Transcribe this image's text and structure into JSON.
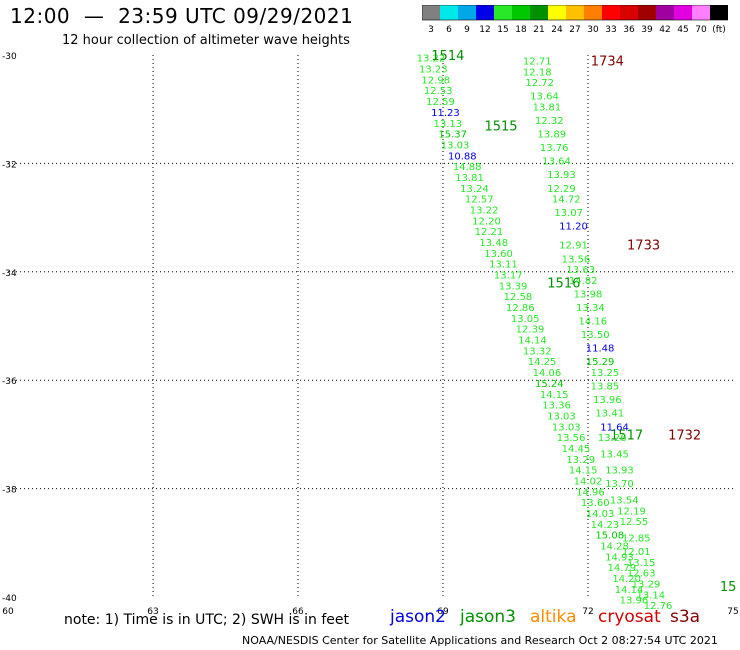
{
  "header": {
    "title": "12:00  —  23:59 UTC 09/29/2021",
    "subtitle": "12 hour collection of altimeter wave heights"
  },
  "color_scale": {
    "labels": [
      "3",
      "6",
      "9",
      "12",
      "15",
      "18",
      "21",
      "24",
      "27",
      "30",
      "33",
      "36",
      "39",
      "42",
      "45",
      "70",
      "(ft)"
    ],
    "colors": [
      "#808080",
      "#00e8e8",
      "#00a8e8",
      "#0000e8",
      "#28e828",
      "#00c800",
      "#009000",
      "#ffff00",
      "#ffc000",
      "#ff8000",
      "#ff0000",
      "#d80000",
      "#a00000",
      "#a000a0",
      "#e000e0",
      "#ff80ff",
      "#000000"
    ]
  },
  "footer": {
    "note": "note:  1) Time is in UTC;  2) SWH is in feet",
    "satellites": [
      {
        "name": "jason2",
        "color": "#0000e0"
      },
      {
        "name": "jason3",
        "color": "#009000"
      },
      {
        "name": "altika",
        "color": "#ff8c00"
      },
      {
        "name": "cryosat",
        "color": "#d00000"
      },
      {
        "name": "s3a",
        "color": "#800000"
      }
    ],
    "credit": "NOAA/NESDIS Center for Satellite Applications and Research    Oct  2 08:27:54 UTC 2021"
  },
  "chart_data": {
    "type": "scatter",
    "xlim": [
      60,
      75
    ],
    "ylim": [
      -40,
      -30
    ],
    "x_ticks": [
      "60",
      "63",
      "66",
      "69",
      "72",
      "75"
    ],
    "y_ticks": [
      "-30",
      "-32",
      "-34",
      "-36",
      "-38",
      "-40"
    ],
    "grid": true,
    "series": [
      {
        "name": "jason3",
        "color": "#009000",
        "points": [
          {
            "x": 68.75,
            "y": -30.05,
            "v": "13.22",
            "c": "#28e828"
          },
          {
            "x": 68.8,
            "y": -30.25,
            "v": "13.23",
            "c": "#28e828"
          },
          {
            "x": 68.85,
            "y": -30.45,
            "v": "12.98",
            "c": "#28e828"
          },
          {
            "x": 68.9,
            "y": -30.65,
            "v": "12.53",
            "c": "#28e828"
          },
          {
            "x": 68.95,
            "y": -30.85,
            "v": "12.59",
            "c": "#28e828"
          },
          {
            "x": 69.05,
            "y": -31.05,
            "v": "11.23",
            "c": "#0000e8"
          },
          {
            "x": 69.1,
            "y": -31.25,
            "v": "13.13",
            "c": "#28e828"
          },
          {
            "x": 69.2,
            "y": -31.45,
            "v": "15.37",
            "c": "#00c800"
          },
          {
            "x": 69.25,
            "y": -31.65,
            "v": "13.03",
            "c": "#28e828"
          },
          {
            "x": 69.4,
            "y": -31.85,
            "v": "10.88",
            "c": "#0000e8"
          },
          {
            "x": 69.5,
            "y": -32.05,
            "v": "14.88",
            "c": "#28e828"
          },
          {
            "x": 69.55,
            "y": -32.25,
            "v": "13.81",
            "c": "#28e828"
          },
          {
            "x": 69.65,
            "y": -32.45,
            "v": "13.24",
            "c": "#28e828"
          },
          {
            "x": 69.75,
            "y": -32.65,
            "v": "12.57",
            "c": "#28e828"
          },
          {
            "x": 69.85,
            "y": -32.85,
            "v": "13.22",
            "c": "#28e828"
          },
          {
            "x": 69.9,
            "y": -33.05,
            "v": "12.20",
            "c": "#28e828"
          },
          {
            "x": 69.95,
            "y": -33.25,
            "v": "12.21",
            "c": "#28e828"
          },
          {
            "x": 70.05,
            "y": -33.45,
            "v": "13.48",
            "c": "#28e828"
          },
          {
            "x": 70.15,
            "y": -33.65,
            "v": "13.60",
            "c": "#28e828"
          },
          {
            "x": 70.25,
            "y": -33.85,
            "v": "13.11",
            "c": "#28e828"
          },
          {
            "x": 70.35,
            "y": -34.05,
            "v": "13.17",
            "c": "#28e828"
          },
          {
            "x": 70.45,
            "y": -34.25,
            "v": "13.39",
            "c": "#28e828"
          },
          {
            "x": 70.55,
            "y": -34.45,
            "v": "12.58",
            "c": "#28e828"
          },
          {
            "x": 70.6,
            "y": -34.65,
            "v": "12.86",
            "c": "#28e828"
          },
          {
            "x": 70.7,
            "y": -34.85,
            "v": "13.05",
            "c": "#28e828"
          },
          {
            "x": 70.8,
            "y": -35.05,
            "v": "12.39",
            "c": "#28e828"
          },
          {
            "x": 70.85,
            "y": -35.25,
            "v": "14.14",
            "c": "#28e828"
          },
          {
            "x": 70.95,
            "y": -35.45,
            "v": "13.32",
            "c": "#28e828"
          },
          {
            "x": 71.05,
            "y": -35.65,
            "v": "14.25",
            "c": "#28e828"
          },
          {
            "x": 71.15,
            "y": -35.85,
            "v": "14.06",
            "c": "#28e828"
          },
          {
            "x": 71.2,
            "y": -36.05,
            "v": "15.24",
            "c": "#00c800"
          },
          {
            "x": 71.3,
            "y": -36.25,
            "v": "14.15",
            "c": "#28e828"
          },
          {
            "x": 71.35,
            "y": -36.45,
            "v": "13.36",
            "c": "#28e828"
          },
          {
            "x": 71.45,
            "y": -36.65,
            "v": "13.03",
            "c": "#28e828"
          },
          {
            "x": 71.55,
            "y": -36.85,
            "v": "13.03",
            "c": "#28e828"
          },
          {
            "x": 71.65,
            "y": -37.05,
            "v": "13.56",
            "c": "#28e828"
          },
          {
            "x": 71.75,
            "y": -37.25,
            "v": "14.45",
            "c": "#28e828"
          },
          {
            "x": 71.85,
            "y": -37.45,
            "v": "13.29",
            "c": "#28e828"
          },
          {
            "x": 71.9,
            "y": -37.65,
            "v": "14.15",
            "c": "#28e828"
          },
          {
            "x": 72.0,
            "y": -37.85,
            "v": "14.02",
            "c": "#28e828"
          },
          {
            "x": 72.05,
            "y": -38.05,
            "v": "14.96",
            "c": "#28e828"
          },
          {
            "x": 72.15,
            "y": -38.25,
            "v": "13.60",
            "c": "#28e828"
          },
          {
            "x": 72.25,
            "y": -38.45,
            "v": "14.03",
            "c": "#28e828"
          },
          {
            "x": 72.35,
            "y": -38.65,
            "v": "14.23",
            "c": "#28e828"
          },
          {
            "x": 72.45,
            "y": -38.85,
            "v": "15.08",
            "c": "#00c800"
          },
          {
            "x": 72.55,
            "y": -39.05,
            "v": "14.28",
            "c": "#28e828"
          },
          {
            "x": 72.65,
            "y": -39.25,
            "v": "14.93",
            "c": "#28e828"
          },
          {
            "x": 72.7,
            "y": -39.45,
            "v": "14.79",
            "c": "#28e828"
          },
          {
            "x": 72.8,
            "y": -39.65,
            "v": "14.20",
            "c": "#28e828"
          },
          {
            "x": 72.85,
            "y": -39.85,
            "v": "14.14",
            "c": "#28e828"
          },
          {
            "x": 72.95,
            "y": -40.05,
            "v": "13.96",
            "c": "#28e828"
          }
        ],
        "time_labels": [
          {
            "x": 69.1,
            "y": -30.0,
            "t": "1514"
          },
          {
            "x": 70.2,
            "y": -31.3,
            "t": "1515"
          },
          {
            "x": 71.5,
            "y": -34.2,
            "t": "1516"
          },
          {
            "x": 72.8,
            "y": -37.0,
            "t": "1517"
          },
          {
            "x": 74.9,
            "y": -39.8,
            "t": "15"
          }
        ]
      },
      {
        "name": "cryosat",
        "color": "#800000",
        "points": [
          {
            "x": 70.95,
            "y": -30.1,
            "v": "12.71",
            "c": "#28e828"
          },
          {
            "x": 70.95,
            "y": -30.3,
            "v": "12.18",
            "c": "#28e828"
          },
          {
            "x": 71.0,
            "y": -30.5,
            "v": "12.72",
            "c": "#28e828"
          },
          {
            "x": 71.1,
            "y": -30.75,
            "v": "13.64",
            "c": "#28e828"
          },
          {
            "x": 71.15,
            "y": -30.95,
            "v": "13.81",
            "c": "#28e828"
          },
          {
            "x": 71.2,
            "y": -31.2,
            "v": "12.32",
            "c": "#28e828"
          },
          {
            "x": 71.25,
            "y": -31.45,
            "v": "13.89",
            "c": "#28e828"
          },
          {
            "x": 71.3,
            "y": -31.7,
            "v": "13.76",
            "c": "#28e828"
          },
          {
            "x": 71.35,
            "y": -31.95,
            "v": "13.64",
            "c": "#28e828"
          },
          {
            "x": 71.45,
            "y": -32.2,
            "v": "13.93",
            "c": "#28e828"
          },
          {
            "x": 71.45,
            "y": -32.45,
            "v": "12.29",
            "c": "#28e828"
          },
          {
            "x": 71.55,
            "y": -32.65,
            "v": "14.72",
            "c": "#28e828"
          },
          {
            "x": 71.6,
            "y": -32.9,
            "v": "13.07",
            "c": "#28e828"
          },
          {
            "x": 71.7,
            "y": -33.15,
            "v": "11.20",
            "c": "#0000e8"
          },
          {
            "x": 71.7,
            "y": -33.5,
            "v": "12.91",
            "c": "#28e828"
          },
          {
            "x": 71.75,
            "y": -33.75,
            "v": "13.56",
            "c": "#28e828"
          },
          {
            "x": 71.85,
            "y": -33.95,
            "v": "13.63",
            "c": "#28e828"
          },
          {
            "x": 71.9,
            "y": -34.15,
            "v": "14.82",
            "c": "#28e828"
          },
          {
            "x": 72.0,
            "y": -34.4,
            "v": "13.98",
            "c": "#28e828"
          },
          {
            "x": 72.05,
            "y": -34.65,
            "v": "13.34",
            "c": "#28e828"
          },
          {
            "x": 72.1,
            "y": -34.9,
            "v": "14.16",
            "c": "#28e828"
          },
          {
            "x": 72.15,
            "y": -35.15,
            "v": "13.50",
            "c": "#28e828"
          },
          {
            "x": 72.25,
            "y": -35.4,
            "v": "11.48",
            "c": "#0000e8"
          },
          {
            "x": 72.25,
            "y": -35.65,
            "v": "15.29",
            "c": "#00c800"
          },
          {
            "x": 72.35,
            "y": -35.85,
            "v": "13.25",
            "c": "#28e828"
          },
          {
            "x": 72.35,
            "y": -36.1,
            "v": "13.85",
            "c": "#28e828"
          },
          {
            "x": 72.4,
            "y": -36.35,
            "v": "13.96",
            "c": "#28e828"
          },
          {
            "x": 72.45,
            "y": -36.6,
            "v": "13.41",
            "c": "#28e828"
          },
          {
            "x": 72.55,
            "y": -36.85,
            "v": "11.64",
            "c": "#0000e8"
          },
          {
            "x": 72.5,
            "y": -37.05,
            "v": "13.26",
            "c": "#28e828"
          },
          {
            "x": 72.55,
            "y": -37.35,
            "v": "13.45",
            "c": "#28e828"
          },
          {
            "x": 72.65,
            "y": -37.65,
            "v": "13.93",
            "c": "#28e828"
          },
          {
            "x": 72.65,
            "y": -37.9,
            "v": "13.70",
            "c": "#28e828"
          },
          {
            "x": 72.75,
            "y": -38.2,
            "v": "13.54",
            "c": "#28e828"
          },
          {
            "x": 72.9,
            "y": -38.4,
            "v": "12.19",
            "c": "#28e828"
          },
          {
            "x": 72.95,
            "y": -38.6,
            "v": "12.55",
            "c": "#28e828"
          },
          {
            "x": 73.0,
            "y": -38.9,
            "v": "12.85",
            "c": "#28e828"
          },
          {
            "x": 73.0,
            "y": -39.15,
            "v": "12.01",
            "c": "#28e828"
          },
          {
            "x": 73.1,
            "y": -39.35,
            "v": "13.15",
            "c": "#28e828"
          },
          {
            "x": 73.1,
            "y": -39.55,
            "v": "12.63",
            "c": "#28e828"
          },
          {
            "x": 73.2,
            "y": -39.75,
            "v": "13.29",
            "c": "#28e828"
          },
          {
            "x": 73.3,
            "y": -39.95,
            "v": "13.14",
            "c": "#28e828"
          },
          {
            "x": 73.45,
            "y": -40.15,
            "v": "12.76",
            "c": "#28e828"
          }
        ],
        "time_labels": [
          {
            "x": 72.4,
            "y": -30.1,
            "t": "1734"
          },
          {
            "x": 73.15,
            "y": -33.5,
            "t": "1733"
          },
          {
            "x": 74.0,
            "y": -37.0,
            "t": "1732"
          }
        ]
      }
    ]
  }
}
